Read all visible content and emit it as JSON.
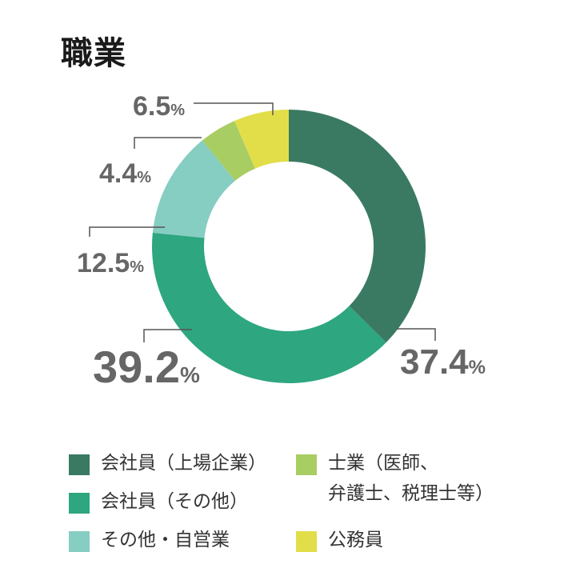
{
  "chart_data": {
    "type": "pie",
    "title": "職業",
    "categories": [
      "会社員（上場企業）",
      "士業（医師、弁護士、税理士等）",
      "会社員（その他）",
      "その他・自営業",
      "公務員"
    ],
    "values": [
      37.4,
      4.4,
      39.2,
      12.5,
      6.5
    ],
    "value_labels": [
      "37.4",
      "4.4",
      "39.2",
      "12.5",
      "6.5"
    ],
    "unit": "%",
    "slice_order": [
      0,
      2,
      3,
      1,
      4
    ],
    "colors": [
      "#3a7a63",
      "#a8cd63",
      "#2ea680",
      "#86cdc2",
      "#e2de4a"
    ],
    "legend_position": "bottom"
  },
  "legend": {
    "left": [
      {
        "label": "会社員（上場企業）",
        "color": "#3a7a63"
      },
      {
        "label": "会社員（その他）",
        "color": "#2ea680"
      },
      {
        "label": "その他・自営業",
        "color": "#86cdc2"
      }
    ],
    "right": [
      {
        "label": "士業（医師、\n弁護士、税理士等）",
        "color": "#a8cd63"
      },
      {
        "label": "公務員",
        "color": "#e2de4a"
      }
    ]
  }
}
